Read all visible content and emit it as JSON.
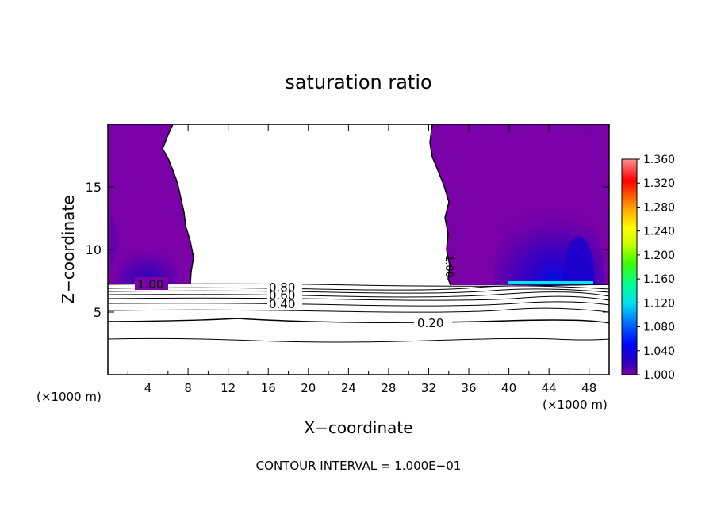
{
  "chart_data": {
    "type": "heatmap",
    "title": "saturation ratio",
    "xlabel": "X−coordinate",
    "ylabel": "Z−coordinate",
    "x_unit_left": "(×1000 m)",
    "x_unit_right": "(×1000 m)",
    "xlim": [
      0,
      50
    ],
    "ylim": [
      0,
      20
    ],
    "xticks": [
      "4",
      "8",
      "12",
      "16",
      "20",
      "24",
      "28",
      "32",
      "36",
      "40",
      "44",
      "48"
    ],
    "yticks": [
      "5",
      "10",
      "15"
    ],
    "contour_interval_text": "CONTOUR INTERVAL = 1.000E−01",
    "contour_labels": [
      "1.00",
      "0.80",
      "0.60",
      "0.40",
      "0.20",
      "1.00"
    ],
    "colorbar": {
      "ticks": [
        "1.360",
        "1.320",
        "1.280",
        "1.240",
        "1.200",
        "1.160",
        "1.120",
        "1.080",
        "1.040",
        "1.000"
      ],
      "min": 1.0,
      "max": 1.36,
      "colors": [
        "#7a00a8",
        "#2000c8",
        "#0000ff",
        "#0080ff",
        "#00e0f0",
        "#00ff80",
        "#40ff00",
        "#c0ff00",
        "#ffff00",
        "#ffc000",
        "#ff8000",
        "#ff2000",
        "#ff0000",
        "#ff8080"
      ]
    },
    "grid": false,
    "legend": "colorbar-right"
  }
}
